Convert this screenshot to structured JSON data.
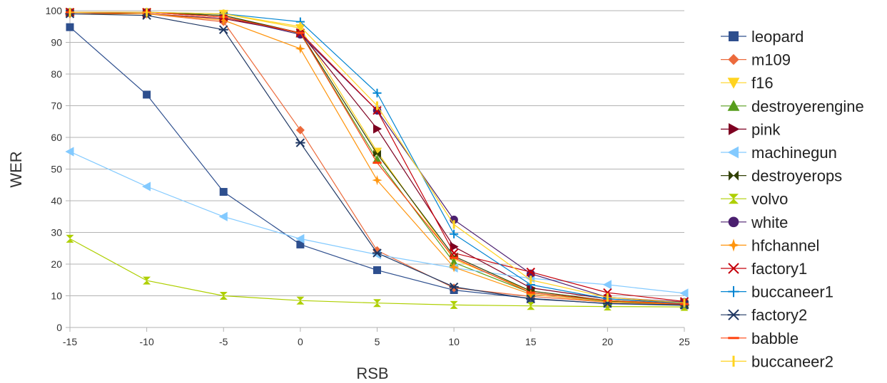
{
  "chart_data": {
    "type": "line",
    "xlabel": "RSB",
    "ylabel": "WER",
    "xlim": [
      -15,
      25
    ],
    "ylim": [
      0,
      100
    ],
    "x": [
      -15,
      -10,
      -5,
      0,
      5,
      10,
      15,
      20,
      25
    ],
    "x_ticks": [
      "-15",
      "-10",
      "-5",
      "0",
      "5",
      "10",
      "15",
      "20",
      "25"
    ],
    "y_ticks": [
      "0",
      "10",
      "20",
      "30",
      "40",
      "50",
      "60",
      "70",
      "80",
      "90",
      "100"
    ],
    "grid": "horizontal",
    "legend_position": "right",
    "series": [
      {
        "name": "leopard",
        "color": "#2e4f8e",
        "marker": "square",
        "values": [
          94.8,
          73.5,
          42.8,
          26.2,
          18.1,
          11.8,
          9.2,
          7.5,
          7.0
        ]
      },
      {
        "name": "m109",
        "color": "#ec6a3c",
        "marker": "diamond",
        "values": [
          99.0,
          99.0,
          96.5,
          62.3,
          24.3,
          12.5,
          9.8,
          8.0,
          7.4
        ]
      },
      {
        "name": "f16",
        "color": "#ffd320",
        "marker": "triangle-down",
        "values": [
          99.5,
          99.5,
          99.0,
          94.5,
          55.5,
          21.5,
          11.5,
          8.5,
          7.6
        ]
      },
      {
        "name": "destroyerengine",
        "color": "#579d1c",
        "marker": "triangle-up",
        "values": [
          99.5,
          99.5,
          98.5,
          92.8,
          53.0,
          20.5,
          11.0,
          8.3,
          7.4
        ]
      },
      {
        "name": "pink",
        "color": "#7e0021",
        "marker": "triangle-right",
        "values": [
          99.5,
          99.0,
          97.5,
          93.0,
          62.7,
          25.5,
          12.5,
          9.0,
          7.8
        ]
      },
      {
        "name": "machinegun",
        "color": "#83caff",
        "marker": "triangle-left",
        "values": [
          55.5,
          44.5,
          35.0,
          28.0,
          23.0,
          18.8,
          15.5,
          13.5,
          10.8
        ]
      },
      {
        "name": "destroyerops",
        "color": "#314004",
        "marker": "bowtie",
        "values": [
          99.5,
          99.5,
          98.5,
          93.0,
          54.8,
          22.5,
          11.5,
          8.5,
          7.4
        ]
      },
      {
        "name": "volvo",
        "color": "#aecf00",
        "marker": "hourglass",
        "values": [
          28.0,
          14.8,
          10.0,
          8.5,
          7.7,
          7.1,
          6.8,
          6.6,
          6.5
        ]
      },
      {
        "name": "white",
        "color": "#4b1f6f",
        "marker": "circle",
        "values": [
          99.5,
          99.5,
          98.0,
          92.5,
          68.5,
          34.0,
          17.0,
          9.5,
          8.0
        ]
      },
      {
        "name": "hfchannel",
        "color": "#ff950e",
        "marker": "star4",
        "values": [
          99.0,
          99.0,
          97.0,
          88.0,
          46.5,
          19.0,
          10.5,
          8.0,
          7.2
        ]
      },
      {
        "name": "factory1",
        "color": "#c5000b",
        "marker": "x",
        "values": [
          99.5,
          99.5,
          98.0,
          93.0,
          68.5,
          23.5,
          17.5,
          11.0,
          8.2
        ]
      },
      {
        "name": "buccaneer1",
        "color": "#0084d1",
        "marker": "plus",
        "values": [
          99.5,
          99.5,
          99.0,
          96.5,
          74.0,
          29.5,
          13.5,
          9.0,
          7.6
        ]
      },
      {
        "name": "factory2",
        "color": "#1f3763",
        "marker": "asterisk",
        "values": [
          99.0,
          98.5,
          94.0,
          58.3,
          23.5,
          12.8,
          9.0,
          7.6,
          7.1
        ]
      },
      {
        "name": "babble",
        "color": "#ff420e",
        "marker": "hbar",
        "values": [
          99.5,
          99.5,
          98.0,
          93.0,
          52.0,
          22.0,
          11.0,
          8.5,
          7.4
        ]
      },
      {
        "name": "buccaneer2",
        "color": "#ffd320",
        "marker": "vbar",
        "values": [
          99.5,
          99.5,
          99.0,
          95.0,
          70.0,
          32.5,
          15.0,
          9.5,
          7.8
        ]
      }
    ]
  }
}
